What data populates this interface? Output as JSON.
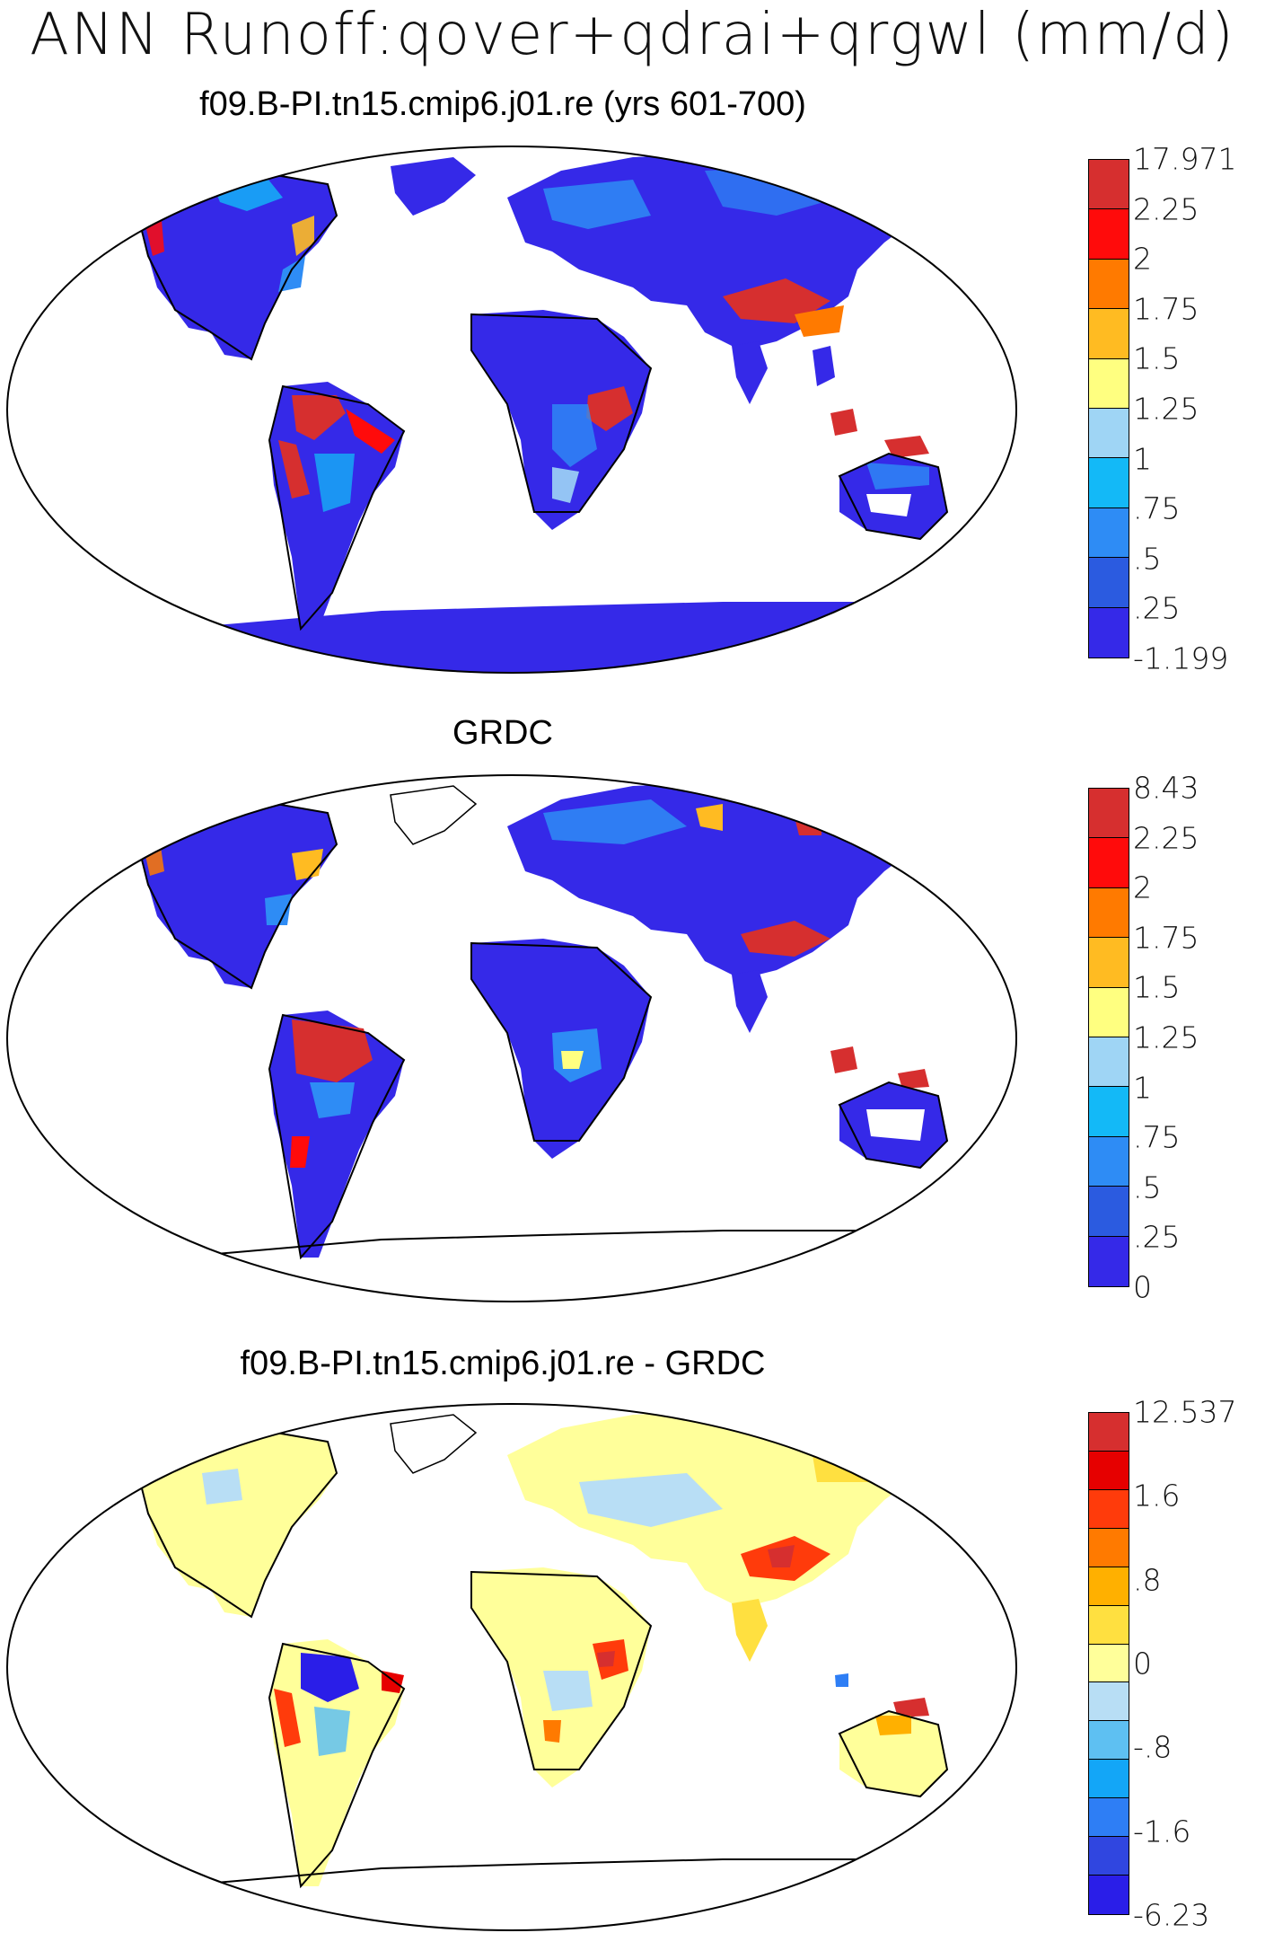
{
  "main_title": "ANN Runoff:qover+qdrai+qrgwl (mm/d)",
  "panels": [
    {
      "id": "model",
      "title": "f09.B-PI.tn15.cmip6.j01.re (yrs 601-700)",
      "colorbar": {
        "labels": [
          "17.971",
          "2.25",
          "2",
          "1.75",
          "1.5",
          "1.25",
          "1",
          ".75",
          ".5",
          ".25",
          "-1.199"
        ],
        "colors": [
          "#d62f2f",
          "#ff0b0b",
          "#ff7a00",
          "#ffbb22",
          "#ffff80",
          "#9fd5f5",
          "#13b9f7",
          "#2e8cf5",
          "#2b5be0",
          "#3529e8"
        ]
      }
    },
    {
      "id": "obs",
      "title": "GRDC",
      "colorbar": {
        "labels": [
          "8.43",
          "2.25",
          "2",
          "1.75",
          "1.5",
          "1.25",
          "1",
          ".75",
          ".5",
          ".25",
          "0"
        ],
        "colors": [
          "#d62f2f",
          "#ff0b0b",
          "#ff7a00",
          "#ffbb22",
          "#ffff80",
          "#9fd5f5",
          "#13b9f7",
          "#2e8cf5",
          "#2b5be0",
          "#3529e8"
        ]
      }
    },
    {
      "id": "diff",
      "title": "f09.B-PI.tn15.cmip6.j01.re - GRDC",
      "colorbar": {
        "labels": [
          "12.537",
          "",
          "1.6",
          "",
          ".8",
          "",
          "0",
          "",
          "-.8",
          "",
          "-1.6",
          "",
          "-6.23"
        ],
        "colors": [
          "#d62f2f",
          "#e60000",
          "#ff3b0b",
          "#ff7a00",
          "#ffb000",
          "#ffe040",
          "#ffff9a",
          "#b8def5",
          "#5ec0f2",
          "#13a6f7",
          "#2e7ef5",
          "#3046e0",
          "#2a1ee8"
        ]
      }
    }
  ]
}
